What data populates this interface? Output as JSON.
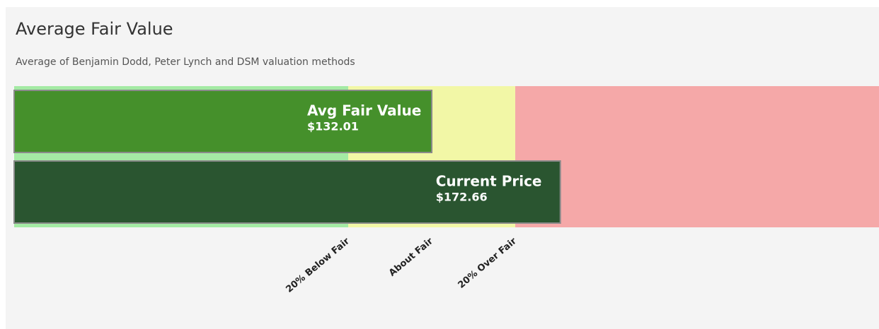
{
  "chart_data": {
    "type": "bar",
    "orientation": "horizontal",
    "title": "Average Fair Value",
    "subtitle": "Average of Benjamin Dodd, Peter Lynch and DSM valuation methods",
    "categories": [
      "Avg Fair Value",
      "Current Price"
    ],
    "values": [
      132.01,
      172.66
    ],
    "value_labels": [
      "$132.01",
      "$172.66"
    ],
    "colors": [
      "#45902b",
      "#2a5530"
    ],
    "xlim": [
      0,
      273.4
    ],
    "xticks": [
      {
        "value": 105.61,
        "label": "20% Below Fair"
      },
      {
        "value": 132.01,
        "label": "About Fair"
      },
      {
        "value": 158.41,
        "label": "20% Over Fair"
      }
    ],
    "band_colors": [
      "#a4eaa4",
      "#f2f7a6",
      "#f5a8a8"
    ]
  }
}
